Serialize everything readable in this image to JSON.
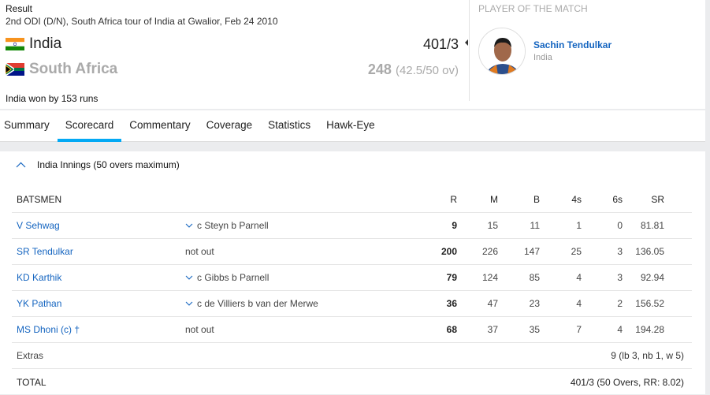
{
  "header": {
    "status": "Result",
    "match_info": "2nd ODI (D/N), South Africa tour of India at Gwalior, Feb 24 2010",
    "teams": [
      {
        "name": "India",
        "score": "401/3",
        "overs": ""
      },
      {
        "name": "South Africa",
        "score": "248",
        "overs": "(42.5/50 ov)"
      }
    ],
    "result_text": "India won by 153 runs"
  },
  "player_of_match": {
    "label": "PLAYER OF THE MATCH",
    "name": "Sachin Tendulkar",
    "team": "India"
  },
  "tabs": [
    {
      "label": "Summary"
    },
    {
      "label": "Scorecard",
      "active": true
    },
    {
      "label": "Commentary"
    },
    {
      "label": "Coverage"
    },
    {
      "label": "Statistics"
    },
    {
      "label": "Hawk-Eye"
    }
  ],
  "innings": {
    "title": "India Innings (50 overs maximum)",
    "columns": {
      "batsmen": "BATSMEN",
      "r": "R",
      "m": "M",
      "b": "B",
      "fours": "4s",
      "sixes": "6s",
      "sr": "SR"
    },
    "batsmen": [
      {
        "name": "V Sehwag",
        "dismissal": "c Steyn b Parnell",
        "r": "9",
        "m": "15",
        "b": "11",
        "fours": "1",
        "sixes": "0",
        "sr": "81.81",
        "expandable": true
      },
      {
        "name": "SR Tendulkar",
        "dismissal": "not out",
        "r": "200",
        "m": "226",
        "b": "147",
        "fours": "25",
        "sixes": "3",
        "sr": "136.05",
        "expandable": false
      },
      {
        "name": "KD Karthik",
        "dismissal": "c Gibbs b Parnell",
        "r": "79",
        "m": "124",
        "b": "85",
        "fours": "4",
        "sixes": "3",
        "sr": "92.94",
        "expandable": true
      },
      {
        "name": "YK Pathan",
        "dismissal": "c de Villiers b van der Merwe",
        "r": "36",
        "m": "47",
        "b": "23",
        "fours": "4",
        "sixes": "2",
        "sr": "156.52",
        "expandable": true
      },
      {
        "name": "MS Dhoni (c) †",
        "dismissal": "not out",
        "r": "68",
        "m": "37",
        "b": "35",
        "fours": "7",
        "sixes": "4",
        "sr": "194.28",
        "expandable": false
      }
    ],
    "extras": {
      "label": "Extras",
      "value": "9 (lb 3, nb 1, w 5)"
    },
    "total": {
      "label": "TOTAL",
      "value": "401/3 (50 Overs, RR: 8.02)"
    }
  },
  "colors": {
    "accent": "#03a9f4",
    "link": "#1565c0"
  }
}
